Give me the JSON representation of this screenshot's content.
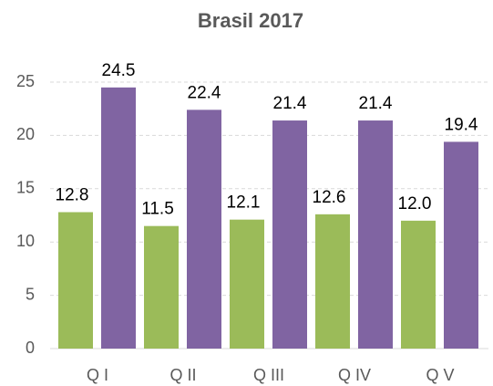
{
  "chart_data": {
    "type": "bar",
    "title": "Brasil 2017",
    "categories": [
      "Q I",
      "Q II",
      "Q III",
      "Q IV",
      "Q V"
    ],
    "series": [
      {
        "color": "#9bbb59",
        "values": [
          12.8,
          11.5,
          12.1,
          12.6,
          12
        ],
        "value_labels": [
          "12.8",
          "11.5",
          "12.1",
          "12.6",
          "12.0"
        ]
      },
      {
        "color": "#8064a2",
        "values": [
          24.5,
          22.4,
          21.4,
          21.4,
          19.4
        ]
      }
    ],
    "ylim": [
      0,
      25
    ],
    "yticks": [
      0,
      5,
      10,
      15,
      20,
      25
    ],
    "grid": true
  }
}
